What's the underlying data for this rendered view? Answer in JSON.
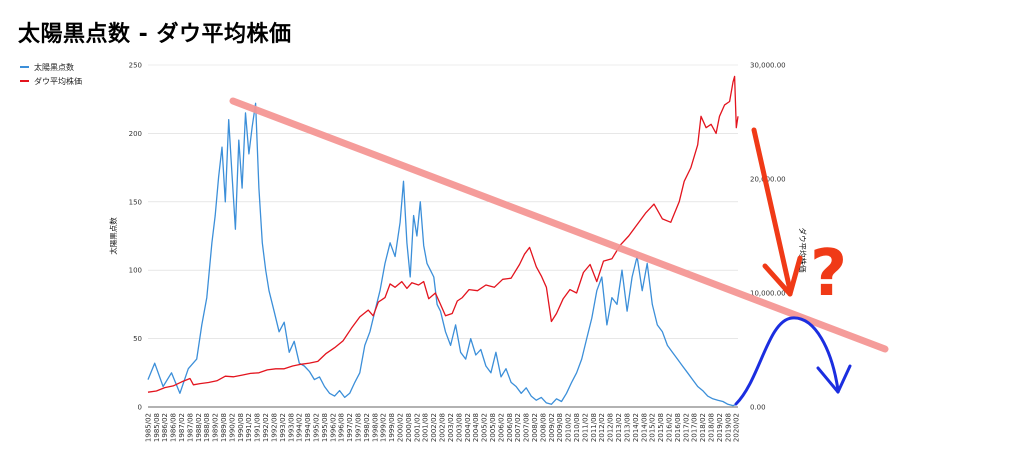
{
  "chart_data": {
    "type": "line",
    "title": "太陽黒点数 - ダウ平均株価",
    "y_left_label": "太陽黒点数",
    "y_right_label": "ダウ平均株価",
    "y_left_ticks": [
      "0",
      "50",
      "100",
      "150",
      "200",
      "250"
    ],
    "y_right_ticks": [
      "0.00",
      "10,000.00",
      "20,000.00",
      "30,000.00"
    ],
    "ylim_left": [
      0,
      250
    ],
    "ylim_right": [
      0,
      30000
    ],
    "x_tick_labels": [
      "1985/02",
      "1985/08",
      "1986/02",
      "1986/08",
      "1987/02",
      "1987/08",
      "1988/02",
      "1988/08",
      "1989/02",
      "1989/08",
      "1990/02",
      "1990/08",
      "1991/02",
      "1991/08",
      "1992/02",
      "1992/08",
      "1993/02",
      "1993/08",
      "1994/02",
      "1994/08",
      "1995/02",
      "1995/08",
      "1996/02",
      "1996/08",
      "1997/02",
      "1997/08",
      "1998/02",
      "1998/08",
      "1999/02",
      "1999/08",
      "2000/02",
      "2000/08",
      "2001/02",
      "2001/08",
      "2002/02",
      "2002/08",
      "2003/02",
      "2003/08",
      "2004/02",
      "2004/08",
      "2005/02",
      "2005/08",
      "2006/02",
      "2006/08",
      "2007/02",
      "2007/08",
      "2008/02",
      "2008/08",
      "2009/02",
      "2009/08",
      "2010/02",
      "2010/08",
      "2011/02",
      "2011/08",
      "2012/02",
      "2012/08",
      "2013/02",
      "2013/08",
      "2014/02",
      "2014/08",
      "2015/02",
      "2015/08",
      "2016/02",
      "2016/08",
      "2017/02",
      "2017/08",
      "2018/02",
      "2018/08",
      "2019/02",
      "2019/08",
      "2020/02"
    ],
    "grid": true,
    "legend_placement": "top-left",
    "series": [
      {
        "name": "太陽黒点数",
        "axis": "left",
        "color": "#3c8fd9",
        "x": [
          1985.1,
          1985.5,
          1986.0,
          1986.5,
          1987.0,
          1987.5,
          1988.0,
          1988.3,
          1988.6,
          1988.9,
          1989.1,
          1989.3,
          1989.5,
          1989.7,
          1989.9,
          1990.1,
          1990.3,
          1990.5,
          1990.7,
          1990.9,
          1991.1,
          1991.3,
          1991.5,
          1991.7,
          1991.9,
          1992.1,
          1992.3,
          1992.6,
          1992.9,
          1993.2,
          1993.5,
          1993.8,
          1994.1,
          1994.4,
          1994.7,
          1995.0,
          1995.3,
          1995.6,
          1995.9,
          1996.2,
          1996.5,
          1996.8,
          1997.1,
          1997.4,
          1997.7,
          1998.0,
          1998.3,
          1998.6,
          1998.9,
          1999.2,
          1999.5,
          1999.8,
          2000.1,
          2000.3,
          2000.5,
          2000.7,
          2000.9,
          2001.1,
          2001.3,
          2001.5,
          2001.7,
          2001.9,
          2002.1,
          2002.3,
          2002.5,
          2002.8,
          2003.1,
          2003.4,
          2003.7,
          2004.0,
          2004.3,
          2004.6,
          2004.9,
          2005.2,
          2005.5,
          2005.8,
          2006.1,
          2006.4,
          2006.7,
          2007.0,
          2007.3,
          2007.6,
          2007.9,
          2008.2,
          2008.5,
          2008.8,
          2009.1,
          2009.4,
          2009.7,
          2010.0,
          2010.3,
          2010.6,
          2010.9,
          2011.2,
          2011.5,
          2011.8,
          2012.1,
          2012.4,
          2012.7,
          2013.0,
          2013.3,
          2013.6,
          2013.9,
          2014.2,
          2014.5,
          2014.8,
          2015.1,
          2015.4,
          2015.7,
          2016.0,
          2016.3,
          2016.6,
          2016.9,
          2017.2,
          2017.5,
          2017.8,
          2018.1,
          2018.4,
          2018.7,
          2019.0,
          2019.3,
          2019.6,
          2019.9,
          2020.1
        ],
        "values": [
          20,
          32,
          15,
          25,
          10,
          28,
          35,
          60,
          80,
          120,
          140,
          168,
          190,
          150,
          210,
          170,
          130,
          195,
          160,
          215,
          185,
          205,
          222,
          160,
          120,
          100,
          85,
          70,
          55,
          62,
          40,
          48,
          32,
          30,
          26,
          20,
          22,
          15,
          10,
          8,
          12,
          7,
          10,
          18,
          25,
          45,
          55,
          70,
          85,
          105,
          120,
          110,
          135,
          165,
          120,
          95,
          140,
          125,
          150,
          118,
          105,
          100,
          95,
          75,
          70,
          55,
          45,
          60,
          40,
          35,
          50,
          38,
          42,
          30,
          25,
          40,
          22,
          28,
          18,
          15,
          10,
          14,
          8,
          5,
          7,
          3,
          2,
          6,
          4,
          10,
          18,
          25,
          35,
          50,
          65,
          85,
          95,
          60,
          80,
          75,
          100,
          70,
          95,
          110,
          85,
          105,
          75,
          60,
          55,
          45,
          40,
          35,
          30,
          25,
          20,
          15,
          12,
          8,
          6,
          5,
          4,
          2,
          1,
          2
        ]
      },
      {
        "name": "ダウ平均株価",
        "axis": "right",
        "color": "#e3141e",
        "x": [
          1985.1,
          1985.6,
          1986.1,
          1986.6,
          1987.1,
          1987.6,
          1987.8,
          1988.2,
          1988.7,
          1989.2,
          1989.7,
          1990.2,
          1990.7,
          1991.2,
          1991.7,
          1992.2,
          1992.7,
          1993.2,
          1993.7,
          1994.2,
          1994.7,
          1995.2,
          1995.7,
          1996.2,
          1996.7,
          1997.2,
          1997.7,
          1998.2,
          1998.5,
          1998.8,
          1999.2,
          1999.5,
          1999.8,
          2000.2,
          2000.5,
          2000.8,
          2001.2,
          2001.5,
          2001.8,
          2002.2,
          2002.5,
          2002.8,
          2003.2,
          2003.5,
          2003.8,
          2004.2,
          2004.7,
          2005.2,
          2005.7,
          2006.2,
          2006.7,
          2007.2,
          2007.5,
          2007.8,
          2008.2,
          2008.5,
          2008.8,
          2009.1,
          2009.4,
          2009.8,
          2010.2,
          2010.6,
          2011.0,
          2011.4,
          2011.8,
          2012.2,
          2012.7,
          2013.2,
          2013.7,
          2014.2,
          2014.7,
          2015.2,
          2015.7,
          2016.2,
          2016.7,
          2017.0,
          2017.4,
          2017.8,
          2018.0,
          2018.3,
          2018.6,
          2018.9,
          2019.1,
          2019.4,
          2019.7,
          2019.9,
          2020.0,
          2020.1,
          2020.2
        ],
        "values": [
          1300,
          1400,
          1700,
          1850,
          2200,
          2500,
          1950,
          2050,
          2150,
          2300,
          2700,
          2650,
          2800,
          2950,
          3000,
          3250,
          3350,
          3350,
          3600,
          3750,
          3850,
          4000,
          4700,
          5200,
          5800,
          6900,
          7900,
          8500,
          8000,
          9200,
          9600,
          10800,
          10500,
          11000,
          10400,
          10900,
          10700,
          11000,
          9500,
          10000,
          9000,
          8000,
          8200,
          9300,
          9600,
          10300,
          10200,
          10700,
          10500,
          11200,
          11300,
          12500,
          13400,
          14000,
          12300,
          11500,
          10500,
          7500,
          8200,
          9500,
          10300,
          10000,
          11800,
          12500,
          11000,
          12800,
          13000,
          14200,
          15000,
          16000,
          17000,
          17800,
          16500,
          16200,
          18000,
          19800,
          21000,
          23000,
          25500,
          24500,
          24800,
          24000,
          25500,
          26500,
          26800,
          28500,
          29000,
          24500,
          25500
        ]
      }
    ]
  },
  "annotations": {
    "question_mark": "?",
    "trendline_color": "#f59795",
    "arrow_color": "#f03a17",
    "curve_color": "#1b2ee0"
  }
}
